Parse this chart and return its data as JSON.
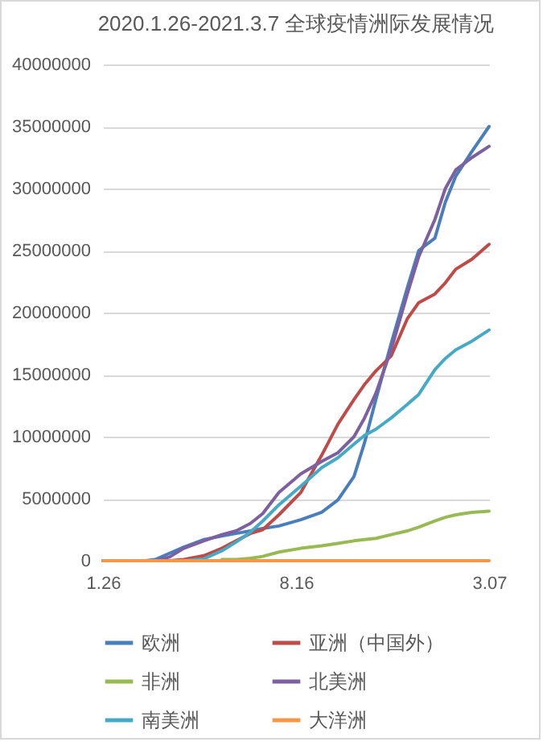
{
  "chart_data": {
    "type": "line",
    "title": "2020.1.26-2021.3.7 全球疫情洲际发展情况",
    "x": [
      "2020-01-26",
      "2020-03-11",
      "2020-03-21",
      "2020-04-05",
      "2020-04-20",
      "2020-05-11",
      "2020-05-30",
      "2020-06-14",
      "2020-06-29",
      "2020-07-12",
      "2020-07-29",
      "2020-08-21",
      "2020-09-12",
      "2020-09-29",
      "2020-10-16",
      "2020-10-27",
      "2020-11-08",
      "2020-11-24",
      "2020-12-11",
      "2020-12-23",
      "2021-01-09",
      "2021-01-20",
      "2021-01-31",
      "2021-02-17",
      "2021-03-07"
    ],
    "series": [
      {
        "name": "欧洲",
        "color": "#4a7ebb",
        "values": [
          0,
          0,
          100000,
          600000,
          1100000,
          1700000,
          2000000,
          2200000,
          2400000,
          2600000,
          2800000,
          3300000,
          3900000,
          4900000,
          6800000,
          9500000,
          13000000,
          17500000,
          22000000,
          25000000,
          26000000,
          28900000,
          31000000,
          33000000,
          35000000
        ]
      },
      {
        "name": "亚洲（中国外）",
        "color": "#be4b48",
        "values": [
          null,
          null,
          0,
          0,
          100000,
          400000,
          1000000,
          1600000,
          2200000,
          2500000,
          3700000,
          5500000,
          8500000,
          11000000,
          13000000,
          14200000,
          15300000,
          16500000,
          19500000,
          20800000,
          21500000,
          22400000,
          23500000,
          24300000,
          25500000
        ]
      },
      {
        "name": "非洲",
        "color": "#98b954",
        "values": [
          null,
          null,
          null,
          null,
          null,
          null,
          100000,
          100000,
          200000,
          350000,
          700000,
          1000000,
          1200000,
          1400000,
          1600000,
          1700000,
          1800000,
          2100000,
          2400000,
          2700000,
          3200000,
          3500000,
          3700000,
          3900000,
          4000000
        ]
      },
      {
        "name": "北美洲",
        "color": "#7d60a0",
        "values": [
          0,
          0,
          0,
          300000,
          1000000,
          1600000,
          2100000,
          2400000,
          3000000,
          3800000,
          5500000,
          7000000,
          8000000,
          8700000,
          10000000,
          11500000,
          13500000,
          17000000,
          21500000,
          24500000,
          27500000,
          30000000,
          31500000,
          32500000,
          33400000
        ]
      },
      {
        "name": "南美洲",
        "color": "#46aac5",
        "values": [
          0,
          0,
          0,
          0,
          0,
          150000,
          800000,
          1500000,
          2300000,
          3200000,
          4500000,
          6000000,
          7500000,
          8300000,
          9400000,
          10100000,
          10600000,
          11500000,
          12600000,
          13400000,
          15400000,
          16300000,
          17000000,
          17700000,
          18600000
        ]
      },
      {
        "name": "大洋洲",
        "color": "#f79646",
        "values": [
          0,
          0,
          0,
          0,
          0,
          0,
          0,
          0,
          0,
          0,
          0,
          0,
          0,
          0,
          0,
          0,
          0,
          0,
          0,
          0,
          0,
          0,
          0,
          0,
          0
        ]
      }
    ],
    "xlim": [
      "2020-01-26",
      "2021-03-07"
    ],
    "xticks": [
      {
        "value": "2020-01-26",
        "label": "1.26"
      },
      {
        "value": "2020-08-16",
        "label": "8.16"
      },
      {
        "value": "2021-03-07",
        "label": "3.07"
      }
    ],
    "ylim": [
      0,
      40000000
    ],
    "yticks": [
      0,
      5000000,
      10000000,
      15000000,
      20000000,
      25000000,
      30000000,
      35000000,
      40000000
    ],
    "grid": "y",
    "legend": "bottom",
    "marker": "none",
    "line_style": "solid"
  }
}
